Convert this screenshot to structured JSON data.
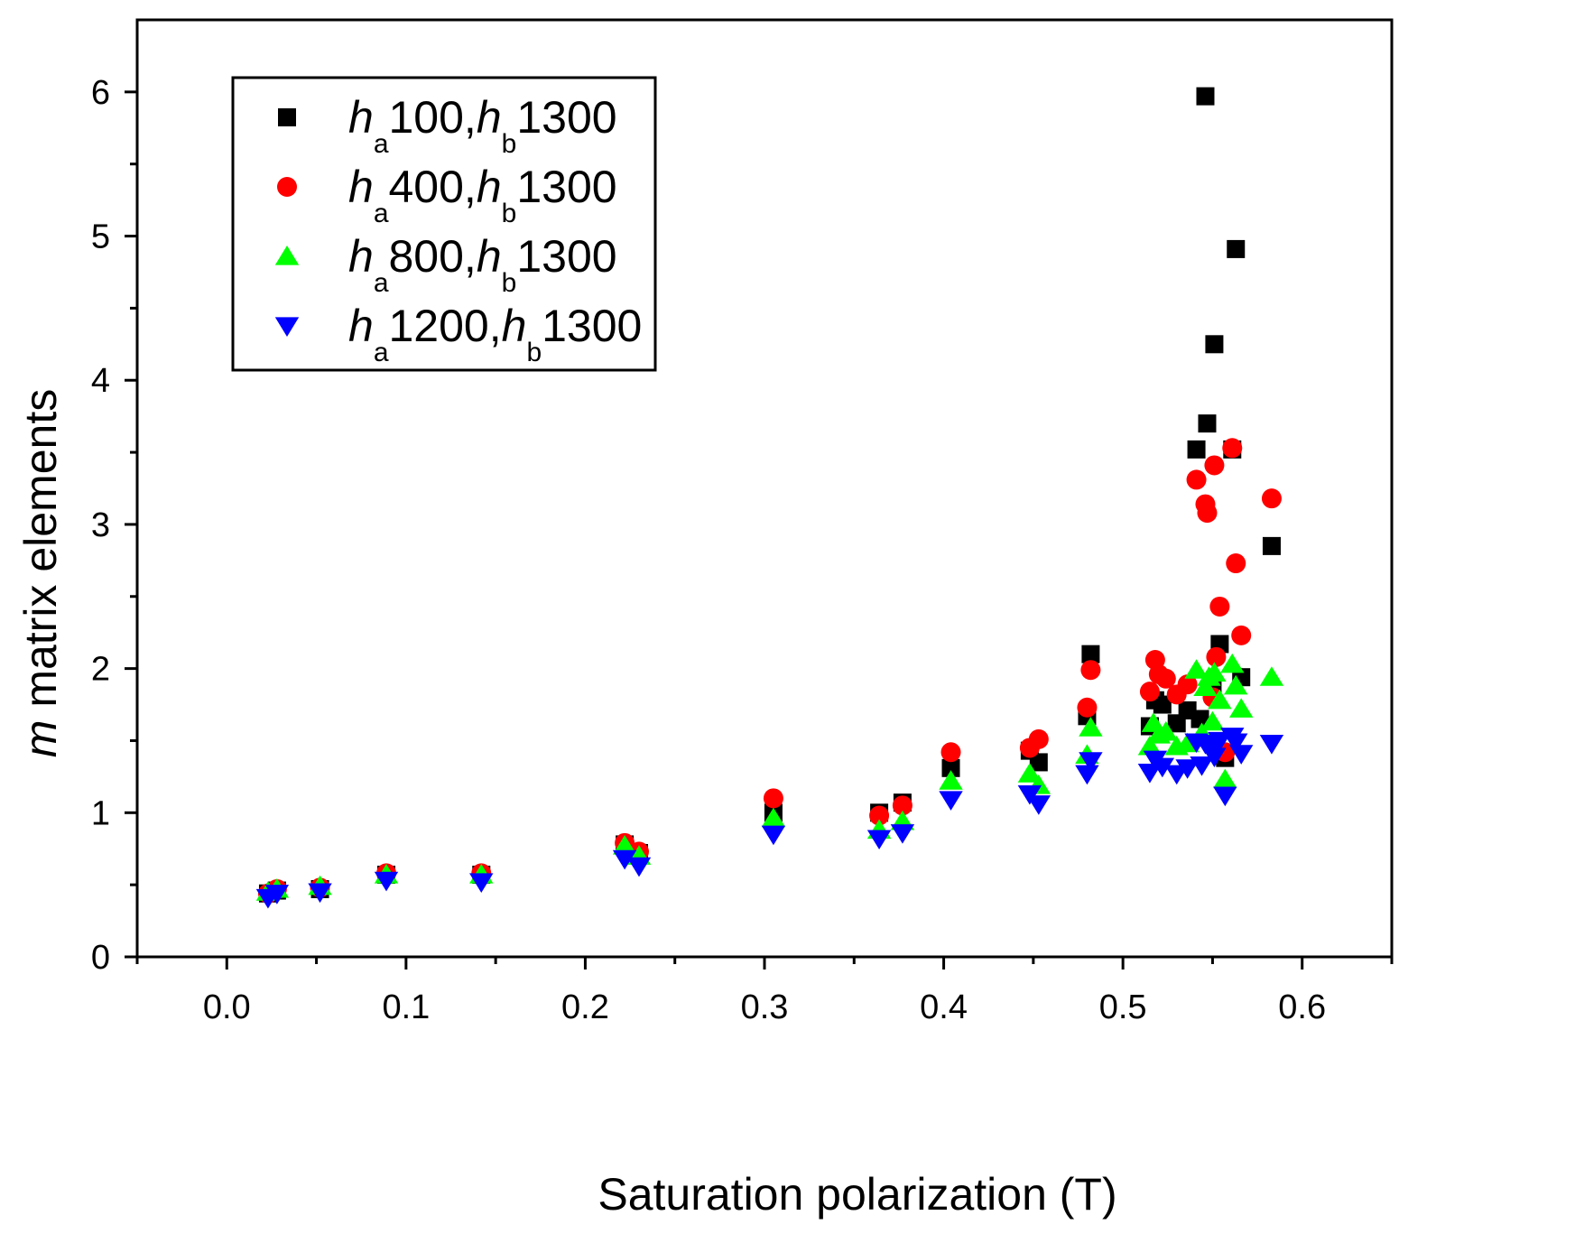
{
  "chart_data": {
    "type": "scatter",
    "title": "",
    "xlabel": "Saturation polarization  (T)",
    "ylabel": "m matrix elements",
    "ylabel_italic_part": "m",
    "ylabel_rest": " matrix elements",
    "xlim": [
      -0.05,
      0.65
    ],
    "ylim": [
      0,
      6.5
    ],
    "xticks": [
      0.0,
      0.1,
      0.2,
      0.3,
      0.4,
      0.5,
      0.6
    ],
    "xtick_labels": [
      "0.0",
      "0.1",
      "0.2",
      "0.3",
      "0.4",
      "0.5",
      "0.6"
    ],
    "yticks": [
      0,
      1,
      2,
      3,
      4,
      5,
      6
    ],
    "ytick_labels": [
      "0",
      "1",
      "2",
      "3",
      "4",
      "5",
      "6"
    ],
    "grid": false,
    "legend_position": "top-left",
    "series": [
      {
        "name": "ha100,hb1300",
        "legend": {
          "h1": "h",
          "s1": "a",
          "v1": "100,",
          "h2": "h",
          "s2": "b",
          "v2": "1300"
        },
        "marker": "square",
        "color": "#000000",
        "points": [
          [
            0.023,
            0.44
          ],
          [
            0.028,
            0.46
          ],
          [
            0.052,
            0.47
          ],
          [
            0.089,
            0.57
          ],
          [
            0.142,
            0.57
          ],
          [
            0.222,
            0.78
          ],
          [
            0.23,
            0.72
          ],
          [
            0.305,
            1.0
          ],
          [
            0.364,
            1.0
          ],
          [
            0.377,
            1.07
          ],
          [
            0.404,
            1.31
          ],
          [
            0.448,
            1.43
          ],
          [
            0.453,
            1.35
          ],
          [
            0.48,
            1.67
          ],
          [
            0.482,
            2.1
          ],
          [
            0.515,
            1.6
          ],
          [
            0.518,
            1.78
          ],
          [
            0.522,
            1.75
          ],
          [
            0.53,
            1.62
          ],
          [
            0.536,
            1.71
          ],
          [
            0.541,
            3.52
          ],
          [
            0.543,
            1.65
          ],
          [
            0.546,
            5.97
          ],
          [
            0.547,
            3.7
          ],
          [
            0.55,
            1.85
          ],
          [
            0.551,
            4.25
          ],
          [
            0.554,
            2.17
          ],
          [
            0.557,
            1.38
          ],
          [
            0.561,
            3.52
          ],
          [
            0.563,
            4.91
          ],
          [
            0.566,
            1.94
          ],
          [
            0.583,
            2.85
          ]
        ]
      },
      {
        "name": "ha400,hb1300",
        "legend": {
          "h1": "h",
          "s1": "a",
          "v1": "400,",
          "h2": "h",
          "s2": "b",
          "v2": "1300"
        },
        "marker": "circle",
        "color": "#ff0000",
        "points": [
          [
            0.023,
            0.44
          ],
          [
            0.028,
            0.47
          ],
          [
            0.052,
            0.48
          ],
          [
            0.089,
            0.58
          ],
          [
            0.142,
            0.58
          ],
          [
            0.222,
            0.79
          ],
          [
            0.23,
            0.73
          ],
          [
            0.305,
            1.1
          ],
          [
            0.364,
            0.98
          ],
          [
            0.377,
            1.05
          ],
          [
            0.404,
            1.42
          ],
          [
            0.448,
            1.45
          ],
          [
            0.453,
            1.51
          ],
          [
            0.48,
            1.73
          ],
          [
            0.482,
            1.99
          ],
          [
            0.515,
            1.84
          ],
          [
            0.518,
            2.06
          ],
          [
            0.52,
            1.96
          ],
          [
            0.524,
            1.93
          ],
          [
            0.53,
            1.82
          ],
          [
            0.536,
            1.89
          ],
          [
            0.541,
            3.31
          ],
          [
            0.546,
            3.14
          ],
          [
            0.547,
            3.08
          ],
          [
            0.55,
            1.8
          ],
          [
            0.551,
            3.41
          ],
          [
            0.552,
            2.08
          ],
          [
            0.554,
            2.43
          ],
          [
            0.557,
            1.42
          ],
          [
            0.561,
            3.53
          ],
          [
            0.563,
            2.73
          ],
          [
            0.566,
            2.23
          ],
          [
            0.583,
            3.18
          ]
        ]
      },
      {
        "name": "ha800,hb1300",
        "legend": {
          "h1": "h",
          "s1": "a",
          "v1": "800,",
          "h2": "h",
          "s2": "b",
          "v2": "1300"
        },
        "marker": "triangle-up",
        "color": "#00ff00",
        "points": [
          [
            0.023,
            0.45
          ],
          [
            0.028,
            0.47
          ],
          [
            0.052,
            0.49
          ],
          [
            0.089,
            0.57
          ],
          [
            0.142,
            0.57
          ],
          [
            0.222,
            0.77
          ],
          [
            0.23,
            0.7
          ],
          [
            0.305,
            0.96
          ],
          [
            0.364,
            0.88
          ],
          [
            0.377,
            0.94
          ],
          [
            0.404,
            1.22
          ],
          [
            0.448,
            1.27
          ],
          [
            0.453,
            1.19
          ],
          [
            0.48,
            1.4
          ],
          [
            0.482,
            1.59
          ],
          [
            0.515,
            1.46
          ],
          [
            0.517,
            1.62
          ],
          [
            0.52,
            1.54
          ],
          [
            0.524,
            1.56
          ],
          [
            0.53,
            1.46
          ],
          [
            0.536,
            1.48
          ],
          [
            0.541,
            1.99
          ],
          [
            0.544,
            1.55
          ],
          [
            0.546,
            1.87
          ],
          [
            0.548,
            1.94
          ],
          [
            0.55,
            1.63
          ],
          [
            0.551,
            1.97
          ],
          [
            0.554,
            1.78
          ],
          [
            0.557,
            1.23
          ],
          [
            0.561,
            2.03
          ],
          [
            0.563,
            1.88
          ],
          [
            0.566,
            1.72
          ],
          [
            0.583,
            1.94
          ]
        ]
      },
      {
        "name": "ha1200,hb1300",
        "legend": {
          "h1": "h",
          "s1": "a",
          "v1": "1200,",
          "h2": "h",
          "s2": "b",
          "v2": "1300"
        },
        "marker": "triangle-down",
        "color": "#0000ff",
        "points": [
          [
            0.023,
            0.41
          ],
          [
            0.028,
            0.44
          ],
          [
            0.052,
            0.45
          ],
          [
            0.089,
            0.53
          ],
          [
            0.142,
            0.52
          ],
          [
            0.222,
            0.68
          ],
          [
            0.23,
            0.63
          ],
          [
            0.305,
            0.85
          ],
          [
            0.364,
            0.82
          ],
          [
            0.377,
            0.86
          ],
          [
            0.404,
            1.09
          ],
          [
            0.448,
            1.13
          ],
          [
            0.453,
            1.06
          ],
          [
            0.48,
            1.27
          ],
          [
            0.482,
            1.36
          ],
          [
            0.515,
            1.28
          ],
          [
            0.518,
            1.37
          ],
          [
            0.522,
            1.32
          ],
          [
            0.53,
            1.27
          ],
          [
            0.536,
            1.31
          ],
          [
            0.541,
            1.49
          ],
          [
            0.544,
            1.33
          ],
          [
            0.546,
            1.48
          ],
          [
            0.548,
            1.47
          ],
          [
            0.55,
            1.44
          ],
          [
            0.551,
            1.39
          ],
          [
            0.554,
            1.5
          ],
          [
            0.557,
            1.12
          ],
          [
            0.561,
            1.53
          ],
          [
            0.563,
            1.49
          ],
          [
            0.566,
            1.41
          ],
          [
            0.583,
            1.48
          ]
        ]
      }
    ]
  }
}
